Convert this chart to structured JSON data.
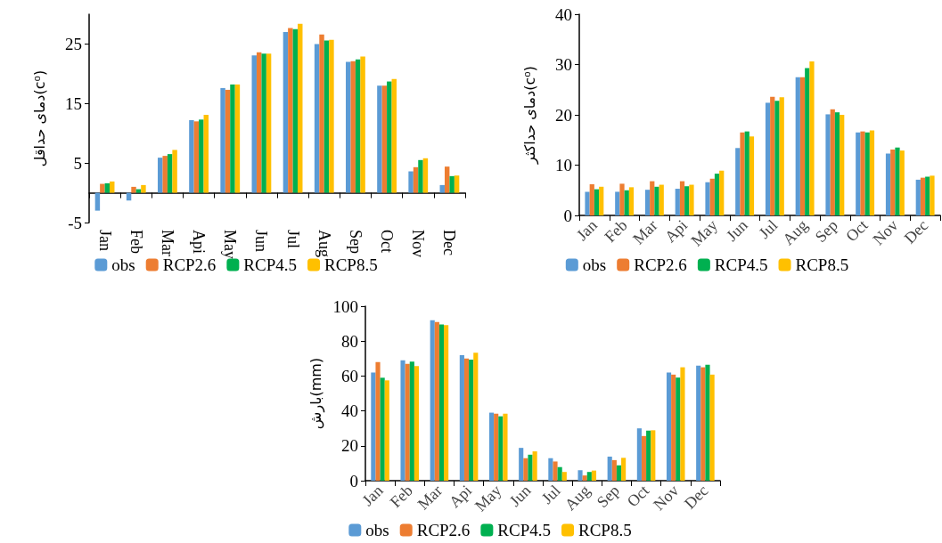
{
  "chart_data": [
    {
      "type": "bar",
      "ylabel": "دمای حداقل(c⁰)",
      "categories": [
        "Jan",
        "Feb",
        "Mar",
        "Api",
        "May",
        "Jun",
        "Jul",
        "Aug",
        "Sep",
        "Oct",
        "Nov",
        "Dec"
      ],
      "ylim": [
        -5,
        30
      ],
      "yticks": [
        -5,
        5,
        15,
        25
      ],
      "grid": false,
      "legend": "bottom",
      "series": [
        {
          "name": "obs",
          "color": "#5b9bd5",
          "values": [
            -3.0,
            -1.3,
            5.9,
            12.2,
            17.6,
            23.1,
            27.0,
            25.0,
            22.0,
            18.0,
            3.6,
            1.3
          ]
        },
        {
          "name": "RCP2.6",
          "color": "#ed7d31",
          "values": [
            1.5,
            1.0,
            6.2,
            12.0,
            17.3,
            23.6,
            27.7,
            26.6,
            22.1,
            18.0,
            4.3,
            4.4
          ]
        },
        {
          "name": "RCP4.5",
          "color": "#00b050",
          "values": [
            1.6,
            0.6,
            6.5,
            12.3,
            18.2,
            23.4,
            27.5,
            25.6,
            22.4,
            18.7,
            5.5,
            2.8
          ]
        },
        {
          "name": "RCP8.5",
          "color": "#ffc000",
          "values": [
            1.9,
            1.3,
            7.2,
            13.1,
            18.2,
            23.4,
            28.4,
            25.7,
            22.9,
            19.1,
            5.8,
            2.9
          ]
        }
      ]
    },
    {
      "type": "bar",
      "ylabel": "دمای حداکثر(c⁰)",
      "categories": [
        "Jan",
        "Feb",
        "Mar",
        "Api",
        "May",
        "Jun",
        "Jul",
        "Aug",
        "Sep",
        "Oct",
        "Nov",
        "Dec"
      ],
      "ylim": [
        0,
        40
      ],
      "yticks": [
        0,
        10,
        20,
        30,
        40
      ],
      "grid": false,
      "legend": "bottom",
      "series": [
        {
          "name": "obs",
          "color": "#5b9bd5",
          "values": [
            4.7,
            4.7,
            5.1,
            5.3,
            6.6,
            13.4,
            22.4,
            27.5,
            20.1,
            16.5,
            12.3,
            7.1
          ]
        },
        {
          "name": "RCP2.6",
          "color": "#ed7d31",
          "values": [
            6.2,
            6.3,
            6.8,
            6.8,
            7.3,
            16.5,
            23.6,
            27.5,
            21.1,
            16.7,
            13.1,
            7.5
          ]
        },
        {
          "name": "RCP4.5",
          "color": "#00b050",
          "values": [
            5.2,
            5.0,
            5.7,
            5.8,
            8.3,
            16.7,
            22.8,
            29.3,
            20.5,
            16.5,
            13.5,
            7.7
          ]
        },
        {
          "name": "RCP8.5",
          "color": "#ffc000",
          "values": [
            5.7,
            5.6,
            6.1,
            6.1,
            8.9,
            15.7,
            23.5,
            30.6,
            20.0,
            16.9,
            12.9,
            7.9
          ]
        }
      ]
    },
    {
      "type": "bar",
      "ylabel": "بارش(mm)",
      "categories": [
        "Jan",
        "Feb",
        "Mar",
        "Api",
        "May",
        "Jun",
        "Jul",
        "Aug",
        "Sep",
        "Oct",
        "Nov",
        "Dec"
      ],
      "ylim": [
        0,
        100
      ],
      "yticks": [
        0,
        20,
        40,
        60,
        80,
        100
      ],
      "grid": false,
      "legend": "bottom",
      "series": [
        {
          "name": "obs",
          "color": "#5b9bd5",
          "values": [
            62,
            69,
            92,
            72,
            39,
            18.8,
            12.9,
            6,
            13.8,
            30,
            62,
            66
          ]
        },
        {
          "name": "RCP2.6",
          "color": "#ed7d31",
          "values": [
            68,
            67,
            91,
            70,
            38.4,
            12.9,
            11,
            3,
            11.8,
            25.6,
            60.8,
            65
          ]
        },
        {
          "name": "RCP4.5",
          "color": "#00b050",
          "values": [
            59,
            68.3,
            89.5,
            69.4,
            36.9,
            14.9,
            7.8,
            5,
            8.8,
            28.7,
            59.1,
            66.4
          ]
        },
        {
          "name": "RCP8.5",
          "color": "#ffc000",
          "values": [
            57.5,
            65.7,
            89.2,
            73.3,
            38.4,
            16.8,
            5.0,
            5.8,
            13.1,
            28.9,
            65,
            60.8
          ]
        }
      ]
    }
  ]
}
